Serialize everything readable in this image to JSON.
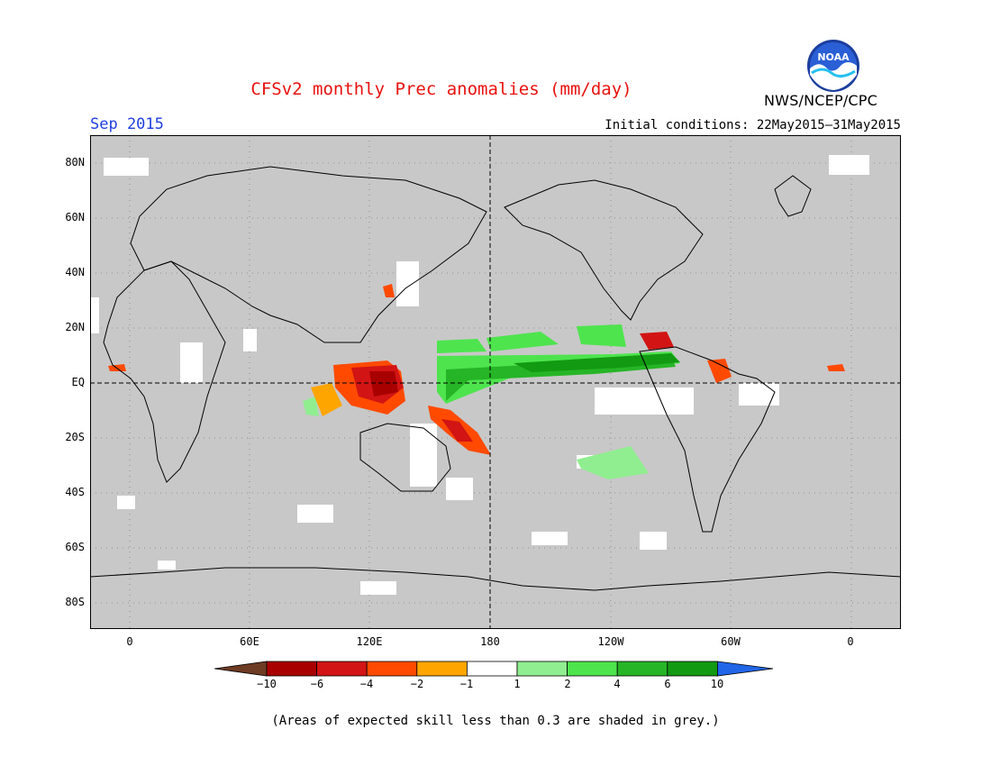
{
  "header": {
    "title": "CFSv2 monthly Prec anomalies (mm/day)",
    "month": "Sep 2015",
    "initial_conditions": "Initial conditions: 22May2015–31May2015",
    "agency": "NWS/NCEP/CPC",
    "logo_text": "NOAA"
  },
  "map": {
    "background_color": "#c8c8c8",
    "gridline_style": "dotted",
    "lat_labels": [
      "80N",
      "60N",
      "40N",
      "20N",
      "EQ",
      "20S",
      "40S",
      "60S",
      "80S"
    ],
    "lon_labels": [
      "0",
      "60E",
      "120E",
      "180",
      "120W",
      "60W",
      "0"
    ]
  },
  "legend": {
    "boundaries": [
      "−10",
      "−6",
      "−4",
      "−2",
      "−1",
      "1",
      "2",
      "4",
      "6",
      "10"
    ],
    "colors": {
      "lt_minus10": "#6e3b23",
      "minus10_minus6": "#a80000",
      "minus6_minus4": "#d21414",
      "minus4_minus2": "#ff4a00",
      "minus2_minus1": "#ffa500",
      "minus1_1": "#ffffff",
      "1_2": "#90ee90",
      "2_4": "#4ee44e",
      "4_6": "#26b526",
      "6_10": "#129a12",
      "gt_10": "#2266e8"
    }
  },
  "footer": {
    "note": "(Areas of expected skill less than 0.3 are shaded in grey.)"
  }
}
